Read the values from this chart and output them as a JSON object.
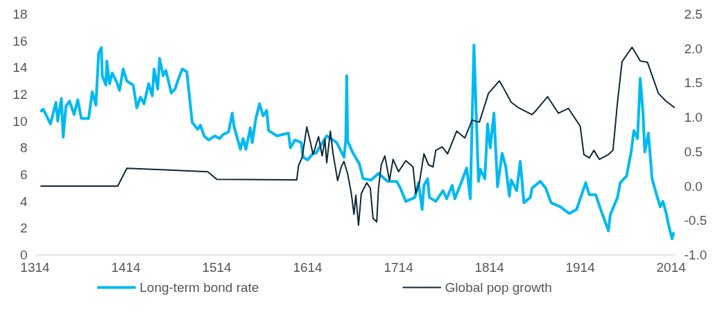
{
  "chart_data": {
    "type": "line",
    "xlim": [
      1314,
      2020
    ],
    "xticks": [
      1314,
      1414,
      1514,
      1614,
      1714,
      1814,
      1914,
      2014
    ],
    "ylim": [
      0,
      18
    ],
    "yticks": [
      0,
      2,
      4,
      6,
      8,
      10,
      12,
      14,
      16,
      18
    ],
    "y2lim": [
      -1.0,
      2.5
    ],
    "y2ticks": [
      {
        "value": -1.0,
        "label": "-1.0"
      },
      {
        "value": -0.5,
        "label": "-0.5"
      },
      {
        "value": 0.0,
        "label": "0.0"
      },
      {
        "value": 0.5,
        "label": "0.5"
      },
      {
        "value": 1.0,
        "label": "1.0"
      },
      {
        "value": 1.5,
        "label": "1.5"
      },
      {
        "value": 2.0,
        "label": "2.0"
      },
      {
        "value": 2.5,
        "label": "2.5"
      }
    ],
    "grid": false,
    "legend": "bottom",
    "marker": "none",
    "line_style": "solid",
    "series": [
      {
        "name": "Long-term bond rate",
        "color": "#00b9f2",
        "x": [
          1320,
          1323,
          1331,
          1337,
          1339,
          1343,
          1345,
          1348,
          1352,
          1357,
          1361,
          1365,
          1373,
          1377,
          1381,
          1384,
          1387,
          1388,
          1392,
          1393,
          1396,
          1399,
          1404,
          1407,
          1411,
          1415,
          1422,
          1426,
          1430,
          1434,
          1439,
          1443,
          1445,
          1449,
          1451,
          1455,
          1458,
          1464,
          1468,
          1471,
          1476,
          1481,
          1487,
          1493,
          1496,
          1500,
          1505,
          1512,
          1517,
          1521,
          1527,
          1531,
          1533,
          1540,
          1543,
          1546,
          1551,
          1553,
          1557,
          1561,
          1565,
          1569,
          1571,
          1580,
          1586,
          1593,
          1595,
          1600,
          1607,
          1609,
          1614,
          1620,
          1623,
          1635,
          1646,
          1654,
          1656,
          1657,
          1658,
          1664,
          1671,
          1675,
          1684,
          1692,
          1702,
          1712,
          1716,
          1722,
          1732,
          1736,
          1740,
          1742,
          1746,
          1748,
          1755,
          1763,
          1767,
          1773,
          1776,
          1783,
          1789,
          1793,
          1797,
          1802,
          1804,
          1809,
          1812,
          1815,
          1819,
          1823,
          1828,
          1832,
          1836,
          1838,
          1844,
          1848,
          1852,
          1859,
          1861,
          1870,
          1876,
          1882,
          1892,
          1902,
          1910,
          1916,
          1920,
          1924,
          1931,
          1937,
          1945,
          1947,
          1955,
          1958,
          1965,
          1970,
          1973,
          1977,
          1980,
          1983,
          1985,
          1989,
          1993,
          1998,
          2002,
          2005,
          2009,
          2011,
          2015,
          2017
        ],
        "values": [
          10.7,
          10.9,
          9.8,
          11.4,
          10.0,
          11.7,
          8.8,
          11.1,
          11.5,
          10.5,
          11.6,
          10.2,
          10.2,
          12.2,
          11.2,
          15.1,
          15.5,
          13.4,
          12.7,
          14.5,
          12.8,
          13.6,
          12.9,
          12.3,
          13.9,
          13.0,
          12.7,
          11.0,
          11.8,
          11.3,
          12.8,
          11.9,
          13.9,
          12.4,
          14.7,
          13.4,
          13.8,
          12.1,
          12.4,
          13.0,
          13.9,
          13.7,
          9.9,
          9.4,
          9.7,
          8.9,
          8.6,
          8.9,
          8.7,
          9.0,
          9.2,
          10.6,
          9.6,
          7.9,
          8.7,
          7.9,
          9.5,
          8.4,
          10.2,
          11.3,
          10.4,
          10.8,
          9.3,
          8.9,
          9.0,
          9.1,
          8.0,
          8.6,
          8.4,
          7.3,
          7.1,
          7.6,
          7.6,
          8.9,
          8.4,
          7.3,
          8.6,
          13.4,
          8.5,
          7.6,
          6.8,
          5.7,
          5.6,
          6.1,
          5.5,
          5.5,
          5.0,
          4.0,
          4.3,
          5.4,
          3.4,
          5.2,
          5.7,
          4.3,
          4.0,
          4.8,
          4.2,
          5.2,
          4.2,
          5.4,
          6.5,
          4.2,
          15.7,
          5.5,
          6.4,
          5.7,
          9.8,
          8.0,
          10.6,
          5.1,
          7.6,
          6.6,
          4.4,
          5.6,
          4.8,
          7.0,
          3.9,
          4.3,
          5.0,
          5.5,
          5.0,
          3.9,
          3.6,
          3.1,
          3.4,
          4.6,
          5.4,
          4.5,
          4.5,
          3.3,
          1.8,
          3.0,
          4.3,
          5.4,
          5.9,
          7.7,
          9.3,
          8.7,
          13.2,
          10.7,
          7.7,
          9.1,
          5.7,
          4.5,
          3.6,
          4.0,
          3.0,
          2.3,
          1.2,
          1.7
        ]
      },
      {
        "name": "Global pop growth",
        "color": "#0c2836",
        "axis": "y2",
        "x": [
          1320,
          1405,
          1415,
          1504,
          1514,
          1602,
          1604,
          1608,
          1613,
          1616,
          1620,
          1626,
          1630,
          1633,
          1635,
          1639,
          1642,
          1647,
          1651,
          1654,
          1658,
          1662,
          1665,
          1667,
          1670,
          1673,
          1679,
          1683,
          1686,
          1690,
          1692,
          1695,
          1699,
          1704,
          1708,
          1714,
          1722,
          1730,
          1733,
          1737,
          1742,
          1747,
          1752,
          1755,
          1762,
          1768,
          1778,
          1787,
          1795,
          1803,
          1813,
          1825,
          1829,
          1838,
          1846,
          1861,
          1866,
          1878,
          1890,
          1901,
          1914,
          1918,
          1924,
          1929,
          1935,
          1945,
          1950,
          1955,
          1960,
          1971,
          1980,
          1988,
          2000,
          2008,
          2018
        ],
        "values": [
          0.0,
          0.0,
          0.26,
          0.21,
          0.1,
          0.09,
          0.3,
          0.42,
          0.86,
          0.7,
          0.46,
          0.72,
          0.44,
          0.68,
          0.34,
          0.8,
          0.47,
          0.08,
          0.28,
          0.36,
          0.18,
          -0.1,
          -0.41,
          -0.13,
          -0.57,
          -0.11,
          0.05,
          -0.03,
          -0.47,
          -0.52,
          -0.03,
          0.31,
          0.44,
          0.08,
          0.39,
          0.21,
          0.37,
          0.28,
          -0.11,
          0.05,
          0.47,
          0.31,
          0.28,
          0.52,
          0.57,
          0.47,
          0.8,
          0.7,
          0.96,
          0.93,
          1.35,
          1.53,
          1.44,
          1.22,
          1.14,
          1.04,
          1.11,
          1.3,
          1.06,
          1.13,
          0.87,
          0.46,
          0.41,
          0.52,
          0.39,
          0.46,
          0.52,
          1.22,
          1.81,
          2.02,
          1.82,
          1.8,
          1.35,
          1.24,
          1.14
        ]
      }
    ]
  }
}
